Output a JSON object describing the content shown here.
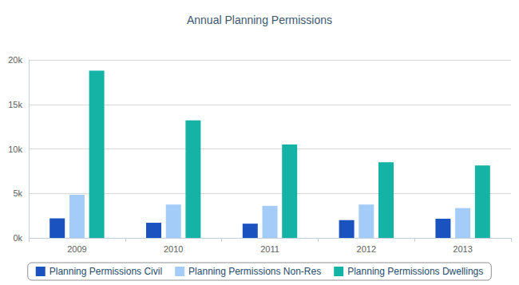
{
  "chart_data": {
    "type": "bar",
    "title": "Annual Planning Permissions",
    "categories": [
      "2009",
      "2010",
      "2011",
      "2012",
      "2013"
    ],
    "series": [
      {
        "name": "Planning Permissions Civil",
        "color": "#1a52c0",
        "values": [
          2200,
          1700,
          1600,
          2000,
          2150
        ]
      },
      {
        "name": "Planning Permissions Non-Res",
        "color": "#a4ccf8",
        "values": [
          4850,
          3750,
          3600,
          3750,
          3350
        ]
      },
      {
        "name": "Planning Permissions Dwellings",
        "color": "#14b3a5",
        "values": [
          18800,
          13200,
          10500,
          8500,
          8150
        ]
      }
    ],
    "ylim": [
      0,
      20000
    ],
    "yticks": [
      {
        "value": 0,
        "label": "0k"
      },
      {
        "value": 5000,
        "label": "5k"
      },
      {
        "value": 10000,
        "label": "10k"
      },
      {
        "value": 15000,
        "label": "15k"
      },
      {
        "value": 20000,
        "label": "20k"
      }
    ],
    "grid": true,
    "legend": "bottom"
  }
}
